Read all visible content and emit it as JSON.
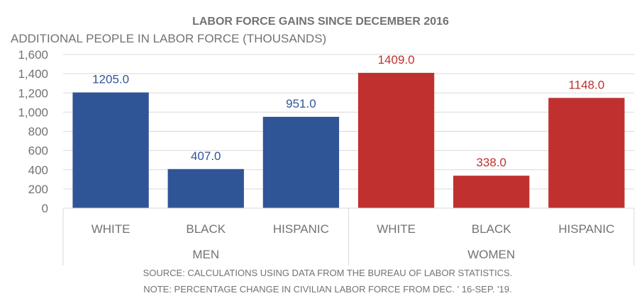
{
  "chart_data": {
    "type": "bar",
    "title": "LABOR FORCE GAINS SINCE DECEMBER 2016",
    "ylabel": "ADDITIONAL PEOPLE IN LABOR FORCE (THOUSANDS)",
    "xlabel": "",
    "ylim": [
      0,
      1600
    ],
    "yticks": [
      0,
      200,
      400,
      600,
      800,
      1000,
      1200,
      1400,
      1600
    ],
    "ytick_labels": [
      "0",
      "200",
      "400",
      "600",
      "800",
      "1,000",
      "1,200",
      "1,400",
      "1,600"
    ],
    "grid": true,
    "groups": [
      {
        "name": "MEN",
        "color": "#2F5597",
        "categories": [
          "WHITE",
          "BLACK",
          "HISPANIC"
        ],
        "values": [
          1205.0,
          407.0,
          951.0
        ],
        "labels": [
          "1205.0",
          "407.0",
          "951.0"
        ]
      },
      {
        "name": "WOMEN",
        "color": "#C0302E",
        "categories": [
          "WHITE",
          "BLACK",
          "HISPANIC"
        ],
        "values": [
          1409.0,
          338.0,
          1148.0
        ],
        "labels": [
          "1409.0",
          "338.0",
          "1148.0"
        ]
      }
    ],
    "notes": [
      "SOURCE: CALCULATIONS USING DATA FROM THE BUREAU OF LABOR STATISTICS.",
      "NOTE: PERCENTAGE CHANGE IN CIVILIAN LABOR FORCE FROM DEC. ' 16-SEP. '19."
    ]
  }
}
